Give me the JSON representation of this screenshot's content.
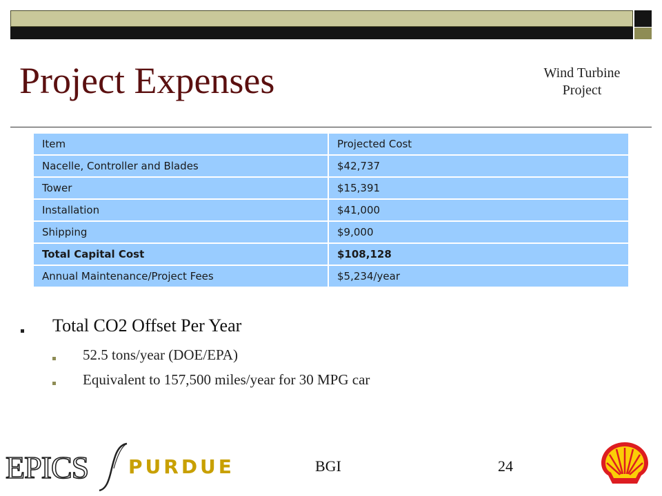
{
  "slide": {
    "title": "Project Expenses",
    "subtitle_line1": "Wind Turbine",
    "subtitle_line2": "Project"
  },
  "table": {
    "headers": [
      "Item",
      "Projected Cost"
    ],
    "rows": [
      [
        "Nacelle, Controller and Blades",
        "$42,737"
      ],
      [
        "Tower",
        "$15,391"
      ],
      [
        "Installation",
        "$41,000"
      ],
      [
        "Shipping",
        "$9,000"
      ],
      [
        "Total Capital Cost",
        "$108,128"
      ],
      [
        "Annual Maintenance/Project Fees",
        "$5,234/year"
      ]
    ]
  },
  "bullets": {
    "main": "Total CO2 Offset Per Year",
    "sub": [
      "52.5 tons/year (DOE/EPA)",
      "Equivalent to 157,500 miles/year for 30 MPG car"
    ]
  },
  "footer": {
    "logo_left_1": "EPICS",
    "logo_left_2": "PURDUE",
    "center_text": "BGI",
    "page_number": "24",
    "logo_right": "shell-logo"
  },
  "colors": {
    "title": "#5b1010",
    "table_fill": "#99ccff",
    "bar_olive": "#c9c89a",
    "bar_dark": "#141414",
    "purdue_gold": "#c8a000",
    "shell_red": "#dd1d21",
    "shell_yellow": "#fbce07"
  }
}
